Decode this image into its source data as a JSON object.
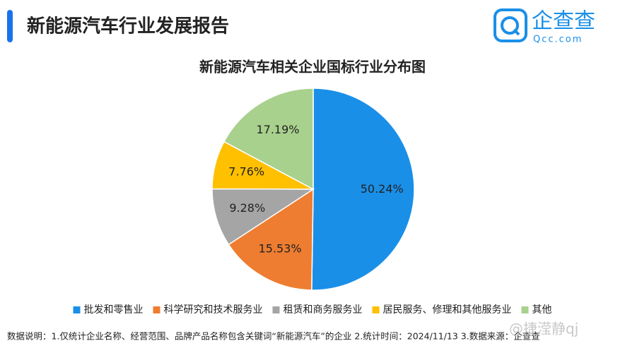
{
  "header": {
    "title": "新能源汽车行业发展报告",
    "logo_text": "企查查",
    "logo_domain": "Qcc.com"
  },
  "chart_data": {
    "type": "pie",
    "title": "新能源汽车相关企业国标行业分布图",
    "categories": [
      "批发和零售业",
      "科学研究和技术服务业",
      "租赁和商务服务业",
      "居民服务、修理和其他服务业",
      "其他"
    ],
    "values": [
      50.24,
      15.53,
      9.28,
      7.76,
      17.19
    ],
    "value_labels": [
      "50.24%",
      "15.53%",
      "9.28%",
      "7.76%",
      "17.19%"
    ],
    "colors": [
      "#1a8fe8",
      "#ee7d31",
      "#a5a5a5",
      "#ffc000",
      "#a9d18e"
    ],
    "legend": "bottom"
  },
  "footer": {
    "note": "数据说明：1.仅统计企业名称、经营范围、品牌产品名称包含关键词“新能源汽车”的企业  2.统计时间：2024/11/13  3.数据来源：企查查",
    "watermark": "@捷滢静qj"
  }
}
